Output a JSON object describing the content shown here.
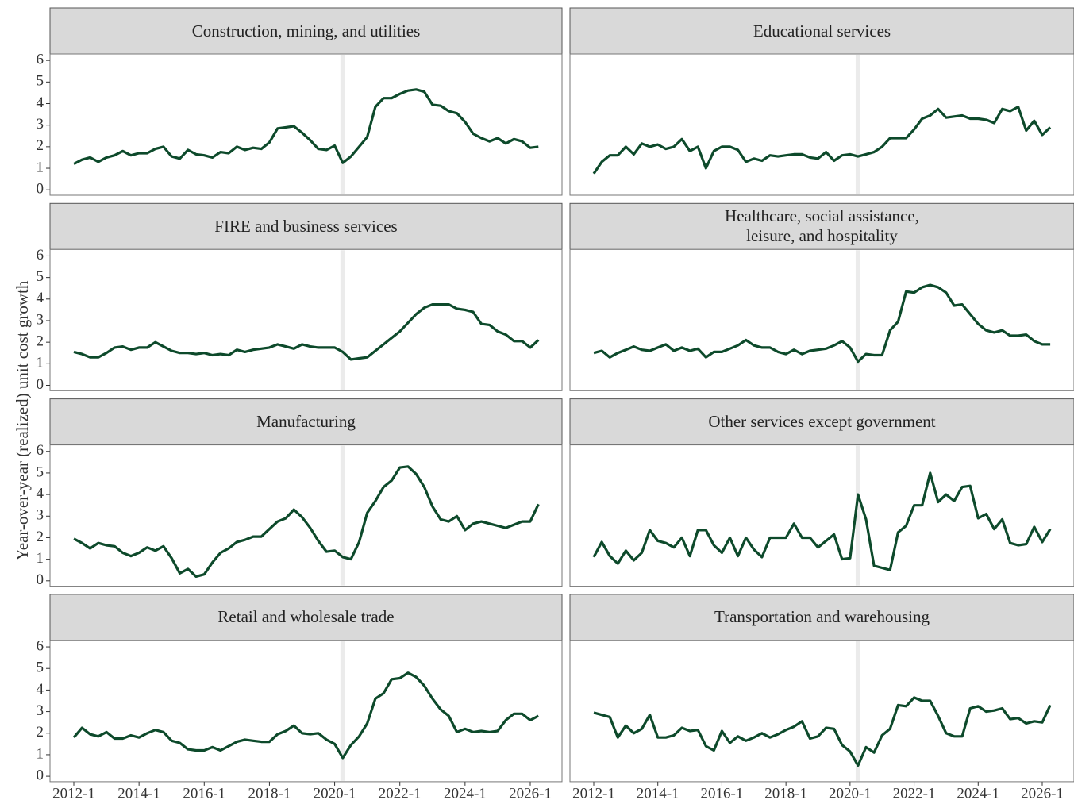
{
  "chart_data": {
    "type": "line",
    "ylabel": "Year-over-year (realized) unit cost growth",
    "color": "#0d4a2b",
    "shade_x": "2020-2",
    "x": [
      "2012-1",
      "2012-2",
      "2012-3",
      "2012-4",
      "2013-1",
      "2013-2",
      "2013-3",
      "2013-4",
      "2014-1",
      "2014-2",
      "2014-3",
      "2014-4",
      "2015-1",
      "2015-2",
      "2015-3",
      "2015-4",
      "2016-1",
      "2016-2",
      "2016-3",
      "2016-4",
      "2017-1",
      "2017-2",
      "2017-3",
      "2017-4",
      "2018-1",
      "2018-2",
      "2018-3",
      "2018-4",
      "2019-1",
      "2019-2",
      "2019-3",
      "2019-4",
      "2020-1",
      "2020-2",
      "2020-3",
      "2020-4",
      "2021-1",
      "2021-2",
      "2021-3",
      "2021-4",
      "2022-1",
      "2022-2",
      "2022-3",
      "2022-4",
      "2023-1",
      "2023-2",
      "2023-3",
      "2023-4",
      "2024-1",
      "2024-2",
      "2024-3",
      "2024-4",
      "2025-1",
      "2025-2",
      "2025-3",
      "2025-4",
      "2026-1",
      "2026-2"
    ],
    "xticks": [
      "2012-1",
      "2014-1",
      "2016-1",
      "2018-1",
      "2020-1",
      "2022-1",
      "2024-1",
      "2026-1"
    ],
    "ylim": [
      -0.25,
      6.3
    ],
    "yticks": [
      0,
      1,
      2,
      3,
      4,
      5,
      6
    ],
    "panels": [
      {
        "title": "Construction, mining, and utilities",
        "values": [
          1.2,
          1.4,
          1.5,
          1.3,
          1.5,
          1.6,
          1.8,
          1.6,
          1.7,
          1.7,
          1.9,
          2.0,
          1.55,
          1.45,
          1.85,
          1.65,
          1.6,
          1.5,
          1.75,
          1.7,
          2.0,
          1.85,
          1.95,
          1.9,
          2.2,
          2.85,
          2.9,
          2.95,
          2.65,
          2.3,
          1.9,
          1.85,
          2.05,
          1.25,
          1.55,
          2.0,
          2.45,
          3.85,
          4.25,
          4.25,
          4.45,
          4.6,
          4.65,
          4.55,
          3.95,
          3.9,
          3.65,
          3.55,
          3.15,
          2.6,
          2.4,
          2.25,
          2.4,
          2.15,
          2.35,
          2.25,
          1.95,
          2.0
        ]
      },
      {
        "title": "Educational services",
        "values": [
          0.75,
          1.3,
          1.6,
          1.6,
          2.0,
          1.65,
          2.15,
          2.0,
          2.1,
          1.9,
          2.0,
          2.35,
          1.8,
          2.0,
          1.0,
          1.8,
          2.0,
          2.0,
          1.85,
          1.3,
          1.45,
          1.35,
          1.6,
          1.55,
          1.6,
          1.65,
          1.65,
          1.5,
          1.45,
          1.75,
          1.35,
          1.6,
          1.65,
          1.55,
          1.65,
          1.75,
          2.0,
          2.4,
          2.4,
          2.4,
          2.8,
          3.3,
          3.45,
          3.75,
          3.35,
          3.4,
          3.45,
          3.3,
          3.3,
          3.25,
          3.1,
          3.75,
          3.65,
          3.85,
          2.75,
          3.2,
          2.55,
          2.9
        ]
      },
      {
        "title": "FIRE and business services",
        "values": [
          1.55,
          1.45,
          1.3,
          1.3,
          1.5,
          1.75,
          1.8,
          1.65,
          1.75,
          1.75,
          2.0,
          1.8,
          1.6,
          1.5,
          1.5,
          1.45,
          1.5,
          1.4,
          1.45,
          1.4,
          1.65,
          1.55,
          1.65,
          1.7,
          1.75,
          1.9,
          1.8,
          1.7,
          1.9,
          1.8,
          1.75,
          1.75,
          1.75,
          1.55,
          1.2,
          1.25,
          1.3,
          1.6,
          1.9,
          2.2,
          2.5,
          2.9,
          3.3,
          3.6,
          3.75,
          3.75,
          3.75,
          3.55,
          3.5,
          3.4,
          2.85,
          2.8,
          2.5,
          2.35,
          2.05,
          2.05,
          1.75,
          2.1
        ]
      },
      {
        "title": "Healthcare, social assistance,\nleisure, and hospitality",
        "values": [
          1.5,
          1.6,
          1.3,
          1.5,
          1.65,
          1.8,
          1.65,
          1.6,
          1.75,
          1.9,
          1.6,
          1.75,
          1.6,
          1.7,
          1.3,
          1.55,
          1.55,
          1.7,
          1.85,
          2.1,
          1.85,
          1.75,
          1.75,
          1.55,
          1.45,
          1.65,
          1.45,
          1.6,
          1.65,
          1.7,
          1.85,
          2.05,
          1.75,
          1.1,
          1.45,
          1.4,
          1.4,
          2.55,
          2.95,
          4.35,
          4.3,
          4.55,
          4.65,
          4.55,
          4.3,
          3.7,
          3.75,
          3.3,
          2.85,
          2.55,
          2.45,
          2.55,
          2.3,
          2.3,
          2.35,
          2.05,
          1.9,
          1.9
        ]
      },
      {
        "title": "Manufacturing",
        "values": [
          1.95,
          1.75,
          1.5,
          1.75,
          1.65,
          1.6,
          1.3,
          1.15,
          1.3,
          1.55,
          1.4,
          1.6,
          1.05,
          0.35,
          0.55,
          0.2,
          0.3,
          0.85,
          1.3,
          1.5,
          1.8,
          1.9,
          2.05,
          2.05,
          2.4,
          2.75,
          2.9,
          3.3,
          2.95,
          2.45,
          1.85,
          1.35,
          1.4,
          1.1,
          1.0,
          1.8,
          3.15,
          3.7,
          4.35,
          4.65,
          5.25,
          5.3,
          4.95,
          4.35,
          3.45,
          2.85,
          2.75,
          3.0,
          2.35,
          2.65,
          2.75,
          2.65,
          2.55,
          2.45,
          2.6,
          2.75,
          2.75,
          3.55
        ]
      },
      {
        "title": "Other services except government",
        "values": [
          1.1,
          1.8,
          1.15,
          0.8,
          1.4,
          0.95,
          1.3,
          2.35,
          1.85,
          1.75,
          1.55,
          2.0,
          1.15,
          2.35,
          2.35,
          1.65,
          1.3,
          2.0,
          1.15,
          2.0,
          1.45,
          1.1,
          2.0,
          2.0,
          2.0,
          2.65,
          2.0,
          2.0,
          1.55,
          1.85,
          2.15,
          1.0,
          1.05,
          4.0,
          2.85,
          0.7,
          0.6,
          0.5,
          2.25,
          2.55,
          3.5,
          3.5,
          5.0,
          3.65,
          4.0,
          3.7,
          4.35,
          4.4,
          2.9,
          3.1,
          2.4,
          2.85,
          1.75,
          1.65,
          1.7,
          2.5,
          1.8,
          2.4
        ]
      },
      {
        "title": "Retail and wholesale trade",
        "values": [
          1.8,
          2.25,
          1.95,
          1.85,
          2.05,
          1.75,
          1.75,
          1.9,
          1.8,
          2.0,
          2.15,
          2.05,
          1.65,
          1.55,
          1.25,
          1.2,
          1.2,
          1.35,
          1.2,
          1.4,
          1.6,
          1.7,
          1.65,
          1.6,
          1.6,
          1.95,
          2.1,
          2.35,
          2.0,
          1.95,
          2.0,
          1.7,
          1.5,
          0.85,
          1.45,
          1.85,
          2.45,
          3.6,
          3.85,
          4.5,
          4.55,
          4.8,
          4.6,
          4.2,
          3.6,
          3.1,
          2.8,
          2.05,
          2.2,
          2.05,
          2.1,
          2.05,
          2.1,
          2.6,
          2.9,
          2.9,
          2.6,
          2.8
        ]
      },
      {
        "title": "Transportation and warehousing",
        "values": [
          2.95,
          2.85,
          2.75,
          1.8,
          2.35,
          2.0,
          2.2,
          2.85,
          1.8,
          1.8,
          1.9,
          2.25,
          2.1,
          2.15,
          1.4,
          1.2,
          2.1,
          1.55,
          1.85,
          1.65,
          1.8,
          2.0,
          1.8,
          1.95,
          2.15,
          2.3,
          2.55,
          1.75,
          1.85,
          2.25,
          2.2,
          1.45,
          1.15,
          0.5,
          1.35,
          1.1,
          1.9,
          2.2,
          3.3,
          3.25,
          3.65,
          3.5,
          3.5,
          2.8,
          2.0,
          1.85,
          1.85,
          3.15,
          3.25,
          3.0,
          3.05,
          3.15,
          2.65,
          2.7,
          2.45,
          2.55,
          2.5,
          3.3
        ]
      }
    ]
  }
}
